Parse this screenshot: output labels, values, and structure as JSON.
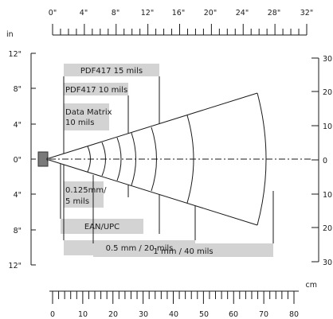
{
  "top_ruler": {
    "unit": "in",
    "labels": [
      "0\"",
      "4\"",
      "8\"",
      "12\"",
      "16\"",
      "20\"",
      "24\"",
      "28\"",
      "32\""
    ]
  },
  "bottom_ruler": {
    "unit": "cm",
    "labels": [
      "0",
      "10",
      "20",
      "30",
      "40",
      "50",
      "60",
      "70",
      "80"
    ]
  },
  "left_axis": {
    "labels": [
      "12\"",
      "8\"",
      "4\"",
      "0\"",
      "4\"",
      "8\"",
      "12\""
    ]
  },
  "right_axis": {
    "labels": [
      "30",
      "20",
      "10",
      "0",
      "10",
      "20",
      "30"
    ]
  },
  "ranges": [
    {
      "label": "PDF417 15 mils",
      "near_cm": 4,
      "far_cm": 36
    },
    {
      "label": "PDF417 10 mils",
      "near_cm": 4,
      "far_cm": 25
    },
    {
      "label": "Data Matrix 10 mils",
      "near_cm": 4,
      "far_cm": 12
    },
    {
      "label": "0.125mm/ 5 mils",
      "near_cm": 4,
      "far_cm": 15
    },
    {
      "label": "EAN/UPC",
      "near_cm": 3,
      "far_cm": 31
    },
    {
      "label": "0.5 mm / 20 mils",
      "near_cm": 4,
      "far_cm": 47
    },
    {
      "label": "1 mm / 40 mils",
      "near_cm": 14,
      "far_cm": 70
    }
  ],
  "arcs_cm": [
    13,
    17,
    21,
    25,
    31,
    47
  ]
}
